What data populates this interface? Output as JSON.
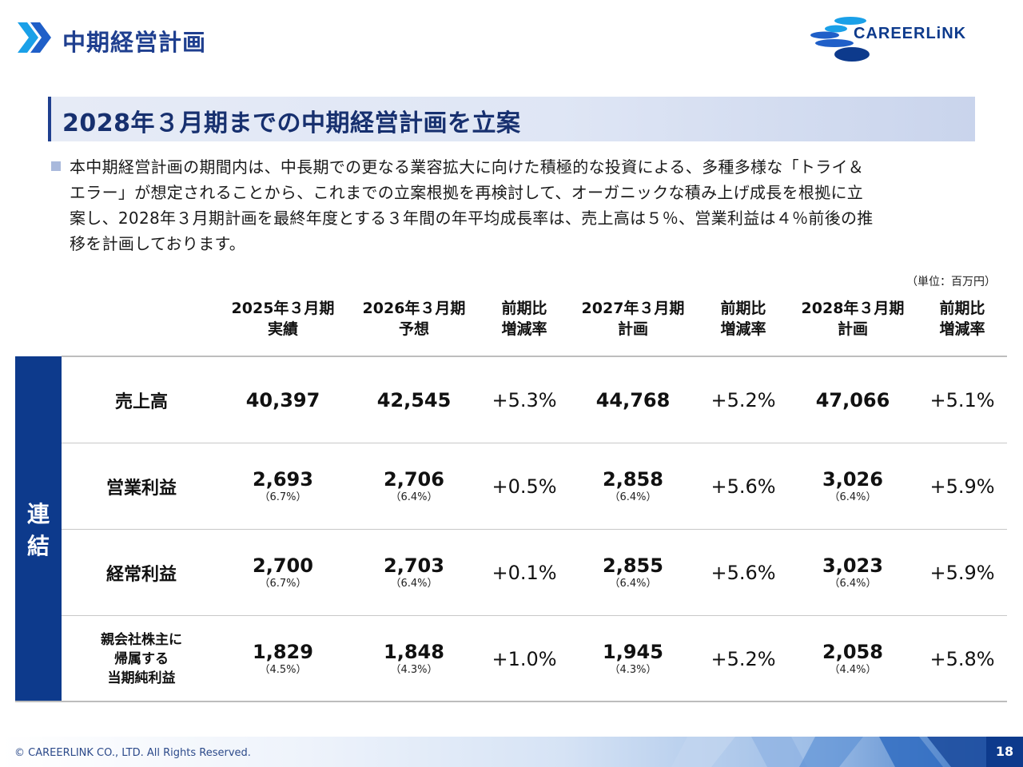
{
  "header": {
    "page_title": "中期経営計画",
    "logo_text": "CAREERLiNK"
  },
  "band": {
    "title": "2028年３月期までの中期経営計画を立案"
  },
  "paragraph": {
    "lines": [
      "本中期経営計画の期間内は、中長期での更なる業容拡大に向けた積極的な投資による、多種多様な「トライ＆",
      "エラー」が想定されることから、これまでの立案根拠を再検討して、オーガニックな積み上げ成長を根拠に立",
      "案し、2028年３月期計画を最終年度とする３年間の年平均成長率は、売上高は５％、営業利益は４％前後の推",
      "移を計画しております。"
    ]
  },
  "unit": "（単位：百万円）",
  "table": {
    "headers": [
      [
        "2025年３月期",
        "実績"
      ],
      [
        "2026年３月期",
        "予想"
      ],
      [
        "前期比",
        "増減率"
      ],
      [
        "2027年３月期",
        "計画"
      ],
      [
        "前期比",
        "増減率"
      ],
      [
        "2028年３月期",
        "計画"
      ],
      [
        "前期比",
        "増減率"
      ]
    ],
    "rail_label": [
      "連",
      "結"
    ],
    "rows": [
      {
        "label": [
          "売上高"
        ],
        "values": [
          "40,397",
          "42,545",
          "44,768",
          "47,066"
        ],
        "margins": [
          "",
          "",
          "",
          ""
        ],
        "growth": [
          "+5.3%",
          "+5.2%",
          "+5.1%"
        ]
      },
      {
        "label": [
          "営業利益"
        ],
        "values": [
          "2,693",
          "2,706",
          "2,858",
          "3,026"
        ],
        "margins": [
          "（6.7%）",
          "（6.4%）",
          "（6.4%）",
          "（6.4%）"
        ],
        "growth": [
          "+0.5%",
          "+5.6%",
          "+5.9%"
        ]
      },
      {
        "label": [
          "経常利益"
        ],
        "values": [
          "2,700",
          "2,703",
          "2,855",
          "3,023"
        ],
        "margins": [
          "（6.7%）",
          "（6.4%）",
          "（6.4%）",
          "（6.4%）"
        ],
        "growth": [
          "+0.1%",
          "+5.6%",
          "+5.9%"
        ]
      },
      {
        "label": [
          "親会社株主に",
          "帰属する",
          "当期純利益"
        ],
        "values": [
          "1,829",
          "1,848",
          "1,945",
          "2,058"
        ],
        "margins": [
          "（4.5%）",
          "（4.3%）",
          "（4.3%）",
          "（4.4%）"
        ],
        "growth": [
          "+1.0%",
          "+5.2%",
          "+5.8%"
        ]
      }
    ]
  },
  "footer": {
    "copyright": "© CAREERLINK CO., LTD. All Rights Reserved.",
    "page_number": "18"
  },
  "colors": {
    "brand_blue": "#0d3a8c",
    "title_blue": "#1f3f8f",
    "chevron_blue": "#1aa0e8"
  }
}
